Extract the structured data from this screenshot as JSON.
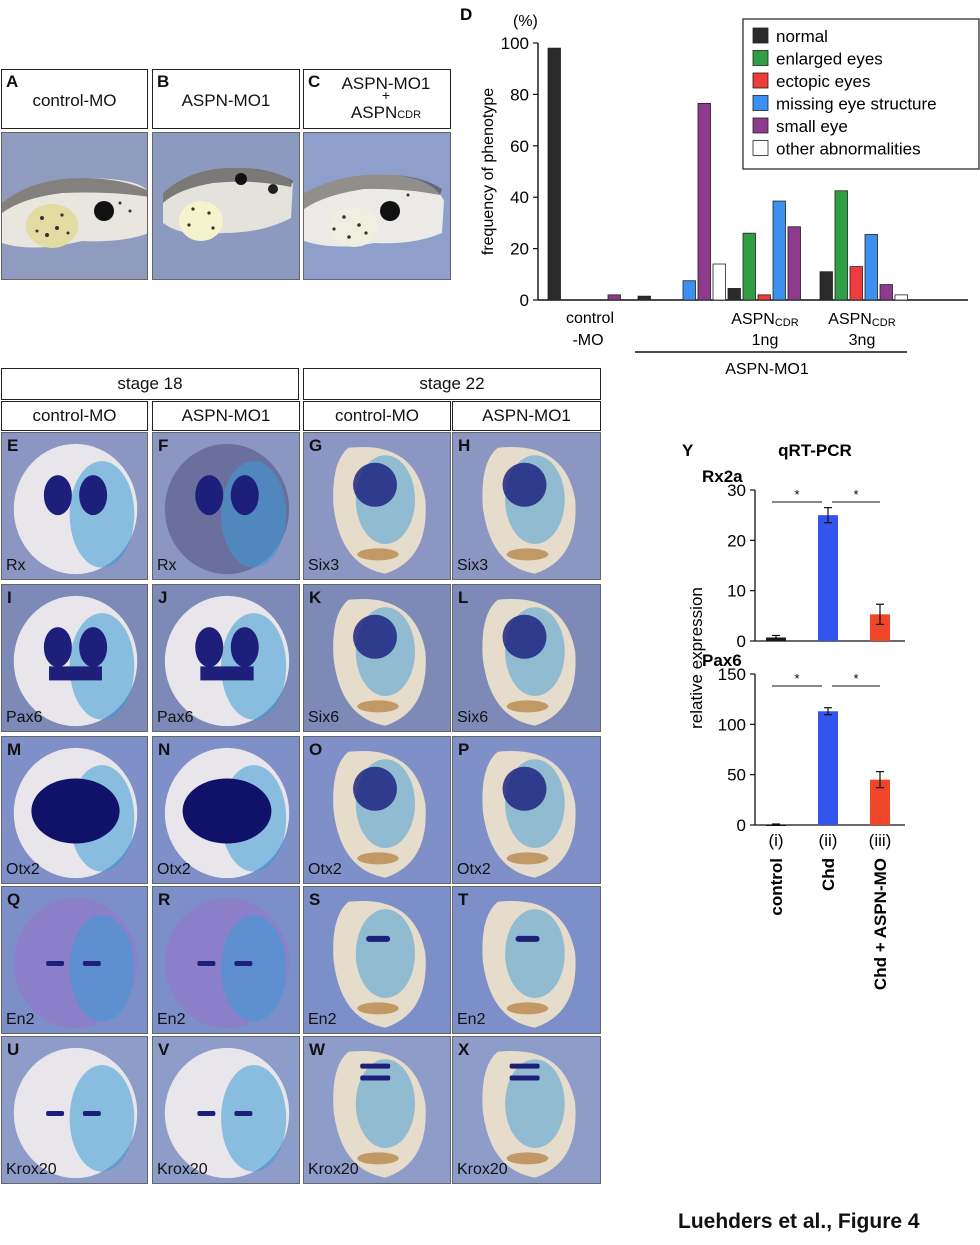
{
  "figure_caption": "Luehders et al., Figure 4",
  "top_panels": [
    {
      "letter": "A",
      "label": "control-MO"
    },
    {
      "letter": "B",
      "label": "ASPN-MO1"
    },
    {
      "letter": "C",
      "label_line1": "ASPN-MO1",
      "label_plus": "+",
      "label_main": "ASPN",
      "label_sub": "CDR"
    }
  ],
  "grid": {
    "stage_headers": [
      "stage 18",
      "stage 22"
    ],
    "column_headers": [
      "control-MO",
      "ASPN-MO1",
      "control-MO",
      "ASPN-MO1"
    ],
    "tiles": [
      {
        "letter": "E",
        "gene": "Rx"
      },
      {
        "letter": "F",
        "gene": "Rx"
      },
      {
        "letter": "G",
        "gene": "Six3"
      },
      {
        "letter": "H",
        "gene": "Six3"
      },
      {
        "letter": "I",
        "gene": "Pax6"
      },
      {
        "letter": "J",
        "gene": "Pax6"
      },
      {
        "letter": "K",
        "gene": "Six6"
      },
      {
        "letter": "L",
        "gene": "Six6"
      },
      {
        "letter": "M",
        "gene": "Otx2"
      },
      {
        "letter": "N",
        "gene": "Otx2"
      },
      {
        "letter": "O",
        "gene": "Otx2"
      },
      {
        "letter": "P",
        "gene": "Otx2"
      },
      {
        "letter": "Q",
        "gene": "En2"
      },
      {
        "letter": "R",
        "gene": "En2"
      },
      {
        "letter": "S",
        "gene": "En2"
      },
      {
        "letter": "T",
        "gene": "En2"
      },
      {
        "letter": "U",
        "gene": "Krox20"
      },
      {
        "letter": "V",
        "gene": "Krox20"
      },
      {
        "letter": "W",
        "gene": "Krox20"
      },
      {
        "letter": "X",
        "gene": "Krox20"
      }
    ]
  },
  "chart_data": [
    {
      "panel": "D",
      "type": "bar",
      "ylabel": "frequency of phenotype",
      "yunit": "(%)",
      "ylim": [
        0,
        100
      ],
      "yticks": [
        0,
        20,
        40,
        60,
        80,
        100
      ],
      "groups": [
        {
          "label_lines": [
            "control",
            "-MO"
          ]
        },
        {
          "label_lines": [
            ""
          ]
        },
        {
          "label_main": "ASPN",
          "label_sub": "CDR",
          "label_dose": "1ng"
        },
        {
          "label_main": "ASPN",
          "label_sub": "CDR",
          "label_dose": "3ng"
        }
      ],
      "bracket_label": "ASPN-MO1",
      "legend_position": "top-right",
      "series": [
        {
          "name": "normal",
          "color": "#2b2b2b",
          "values": [
            98,
            1.5,
            4.5,
            11
          ]
        },
        {
          "name": "enlarged eyes",
          "color": "#2f9e44",
          "values": [
            0,
            0,
            26,
            42.5
          ]
        },
        {
          "name": "ectopic eyes",
          "color": "#ee3b3b",
          "values": [
            0,
            0,
            2,
            13
          ]
        },
        {
          "name": "missing eye structure",
          "color": "#3d8ff0",
          "values": [
            0,
            7.5,
            38.5,
            25.5
          ]
        },
        {
          "name": "small eye",
          "color": "#8e3b8e",
          "values": [
            2,
            76.5,
            28.5,
            6
          ]
        },
        {
          "name": "other abnormalities",
          "color": "#ffffff",
          "values": [
            0,
            14,
            0,
            2
          ]
        }
      ]
    },
    {
      "panel": "Y",
      "type": "bar",
      "title": "qRT-PCR",
      "ylabel": "relative expression",
      "categories_roman": [
        "(i)",
        "(ii)",
        "(iii)"
      ],
      "categories": [
        "control",
        "Chd",
        "Chd + ASPN-MO"
      ],
      "colors": [
        "#1a1a1a",
        "#3355ee",
        "#f0462a"
      ],
      "significance": "*",
      "subplots": [
        {
          "title": "Rx2a",
          "ylim": [
            0,
            30
          ],
          "yticks": [
            0,
            10,
            20,
            30
          ],
          "values": [
            0.7,
            25,
            5.3
          ],
          "errors": [
            0.4,
            1.5,
            2
          ]
        },
        {
          "title": "Pax6",
          "ylim": [
            0,
            150
          ],
          "yticks": [
            0,
            50,
            100,
            150
          ],
          "values": [
            0.5,
            113,
            45
          ],
          "errors": [
            0.5,
            3.5,
            8
          ]
        }
      ]
    }
  ]
}
